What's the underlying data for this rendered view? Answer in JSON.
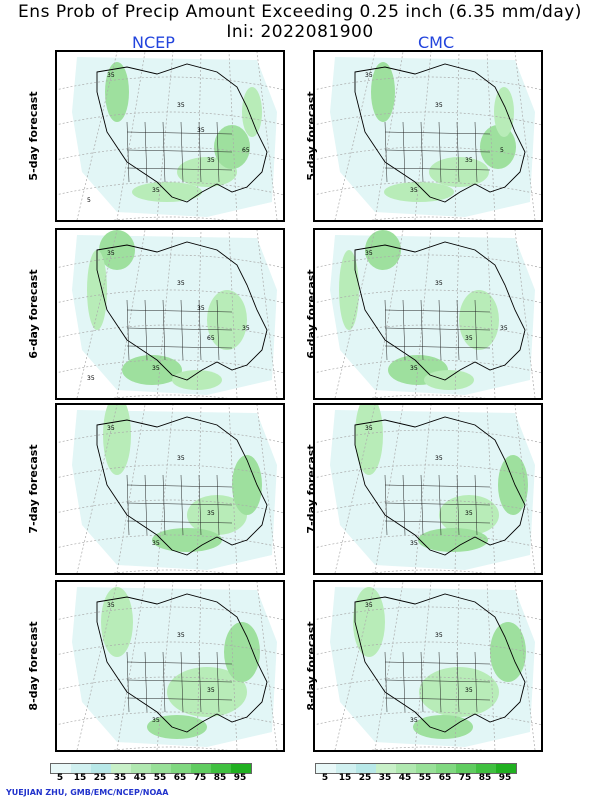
{
  "title_line1": "Ens Prob of Precip Amount Exceeding 0.25 inch (6.35 mm/day)",
  "title_line2": "Ini: 2022081900",
  "models": [
    "NCEP",
    "CMC"
  ],
  "rows": [
    {
      "label": "5-day forecast",
      "ncep_contours": [
        "35",
        "35",
        "35",
        "35",
        "65",
        "35",
        "5"
      ],
      "cmc_contours": [
        "35",
        "35",
        "35",
        "35",
        "5"
      ]
    },
    {
      "label": "6-day forecast",
      "ncep_contours": [
        "35",
        "35",
        "65",
        "35",
        "35",
        "35",
        "35"
      ],
      "cmc_contours": [
        "35",
        "35",
        "35",
        "35",
        "35"
      ]
    },
    {
      "label": "7-day forecast",
      "ncep_contours": [
        "35",
        "35",
        "35",
        "35"
      ],
      "cmc_contours": [
        "35",
        "35",
        "35",
        "35"
      ]
    },
    {
      "label": "8-day forecast",
      "ncep_contours": [
        "35",
        "35",
        "35",
        "35"
      ],
      "cmc_contours": [
        "35",
        "35",
        "35",
        "35"
      ]
    }
  ],
  "legend": {
    "ticks": [
      "5",
      "15",
      "25",
      "35",
      "45",
      "55",
      "65",
      "75",
      "85",
      "95"
    ],
    "colors": [
      "#e8f8f8",
      "#d0f0f0",
      "#b8e8e8",
      "#c8f0c8",
      "#b0e8b0",
      "#98e098",
      "#80d880",
      "#60cc60",
      "#40c040",
      "#20b020"
    ]
  },
  "credit": "YUEJIAN ZHU, GMB/EMC/NCEP/NOAA"
}
